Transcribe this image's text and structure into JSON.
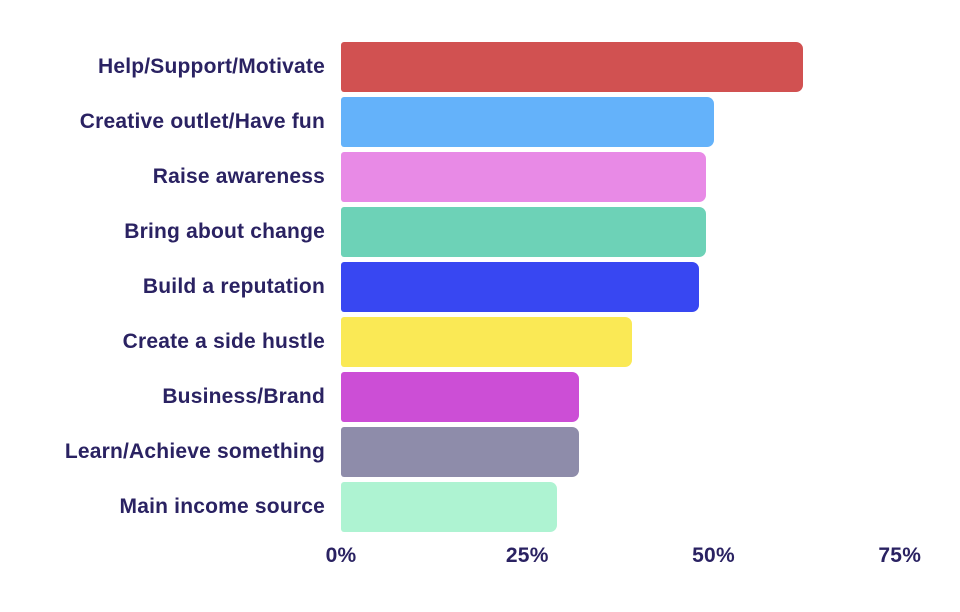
{
  "chart_data": {
    "type": "bar",
    "orientation": "horizontal",
    "title": "",
    "xlabel": "",
    "ylabel": "",
    "grid": false,
    "legend": false,
    "background_color": "#ffffff",
    "text_color": "#2a2262",
    "unit": "%",
    "xlim": [
      0,
      79
    ],
    "categories": [
      "Help/Support/Motivate",
      "Creative outlet/Have fun",
      "Raise awareness",
      "Bring about change",
      "Build a reputation",
      "Create a side hustle",
      "Business/Brand",
      "Learn/Achieve something",
      "Main income source"
    ],
    "values": [
      62,
      50,
      49,
      49,
      48,
      39,
      32,
      32,
      29
    ],
    "bar_colors": [
      "#d15151",
      "#64b2fa",
      "#e88ae6",
      "#6dd2b7",
      "#3847f2",
      "#fae955",
      "#cc4ed6",
      "#8e8caa",
      "#aef3d2"
    ],
    "x_ticks": [
      {
        "label": "0%",
        "value": 0
      },
      {
        "label": "25%",
        "value": 25
      },
      {
        "label": "50%",
        "value": 50
      },
      {
        "label": "75%",
        "value": 75
      }
    ]
  }
}
